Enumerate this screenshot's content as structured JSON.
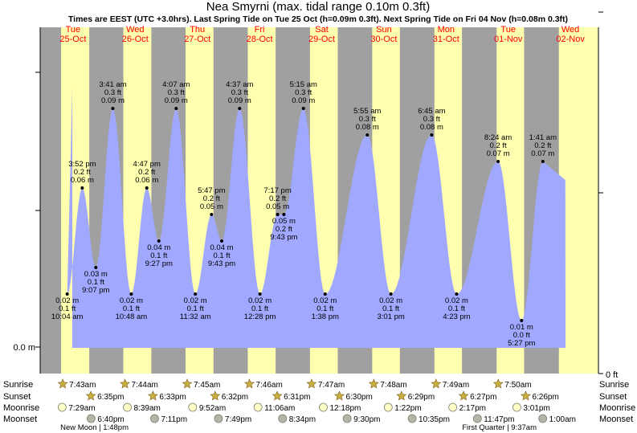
{
  "chart_data": {
    "type": "area",
    "title": "Nea Smyrni (max. tidal range 0.10m 0.3ft)",
    "subtitle": "Times are EEST (UTC +3.0hrs). Last Spring Tide on Tue 25 Oct (h=0.09m 0.3ft). Next Spring Tide on Fri 04 Nov (h=0.08m 0.3ft)",
    "y_left_label": "0.0 m",
    "y_right_label": "0 ft",
    "ylim_m": [
      0.0,
      0.1
    ],
    "days": [
      {
        "dow": "Tue",
        "date": "25-Oct"
      },
      {
        "dow": "Wed",
        "date": "26-Oct"
      },
      {
        "dow": "Thu",
        "date": "27-Oct"
      },
      {
        "dow": "Fri",
        "date": "28-Oct"
      },
      {
        "dow": "Sat",
        "date": "29-Oct"
      },
      {
        "dow": "Sun",
        "date": "30-Oct"
      },
      {
        "dow": "Mon",
        "date": "31-Oct"
      },
      {
        "dow": "Tue",
        "date": "01-Nov"
      },
      {
        "dow": "Wed",
        "date": "02-Nov"
      }
    ],
    "tides": [
      {
        "day": 0,
        "time": "10:04 am",
        "m": "0.02 m",
        "ft": "0.1 ft",
        "type": "low",
        "h": 0.02
      },
      {
        "day": 0,
        "time": "3:52 pm",
        "m": "0.06 m",
        "ft": "0.2 ft",
        "type": "high",
        "h": 0.06
      },
      {
        "day": 0,
        "time": "9:07 pm",
        "m": "0.03 m",
        "ft": "0.1 ft",
        "type": "low",
        "h": 0.03
      },
      {
        "day": 1,
        "time": "3:41 am",
        "m": "0.09 m",
        "ft": "0.3 ft",
        "type": "high",
        "h": 0.09
      },
      {
        "day": 1,
        "time": "10:48 am",
        "m": "0.02 m",
        "ft": "0.1 ft",
        "type": "low",
        "h": 0.02
      },
      {
        "day": 1,
        "time": "4:47 pm",
        "m": "0.06 m",
        "ft": "0.2 ft",
        "type": "high",
        "h": 0.06
      },
      {
        "day": 1,
        "time": "9:27 pm",
        "m": "0.04 m",
        "ft": "0.1 ft",
        "type": "low",
        "h": 0.04
      },
      {
        "day": 2,
        "time": "4:07 am",
        "m": "0.09 m",
        "ft": "0.3 ft",
        "type": "high",
        "h": 0.09
      },
      {
        "day": 2,
        "time": "11:32 am",
        "m": "0.02 m",
        "ft": "0.1 ft",
        "type": "low",
        "h": 0.02
      },
      {
        "day": 2,
        "time": "5:47 pm",
        "m": "0.05 m",
        "ft": "0.2 ft",
        "type": "high",
        "h": 0.05
      },
      {
        "day": 2,
        "time": "9:43 pm",
        "m": "0.04 m",
        "ft": "0.1 ft",
        "type": "low",
        "h": 0.04
      },
      {
        "day": 3,
        "time": "4:37 am",
        "m": "0.09 m",
        "ft": "0.3 ft",
        "type": "high",
        "h": 0.09
      },
      {
        "day": 3,
        "time": "12:28 pm",
        "m": "0.02 m",
        "ft": "0.1 ft",
        "type": "low",
        "h": 0.02
      },
      {
        "day": 3,
        "time": "7:17 pm",
        "m": "0.05 m",
        "ft": "0.2 ft",
        "type": "high",
        "h": 0.05
      },
      {
        "day": 3,
        "time": "9:43 pm",
        "m": "0.05 m",
        "ft": "0.2 ft",
        "type": "low",
        "h": 0.05
      },
      {
        "day": 4,
        "time": "5:15 am",
        "m": "0.09 m",
        "ft": "0.3 ft",
        "type": "high",
        "h": 0.09
      },
      {
        "day": 4,
        "time": "1:38 pm",
        "m": "0.02 m",
        "ft": "0.1 ft",
        "type": "low",
        "h": 0.02
      },
      {
        "day": 5,
        "time": "5:55 am",
        "m": "0.08 m",
        "ft": "0.3 ft",
        "type": "high",
        "h": 0.08
      },
      {
        "day": 5,
        "time": "3:01 pm",
        "m": "0.02 m",
        "ft": "0.1 ft",
        "type": "low",
        "h": 0.02
      },
      {
        "day": 6,
        "time": "6:45 am",
        "m": "0.08 m",
        "ft": "0.3 ft",
        "type": "high",
        "h": 0.08
      },
      {
        "day": 6,
        "time": "4:23 pm",
        "m": "0.02 m",
        "ft": "0.1 ft",
        "type": "low",
        "h": 0.02
      },
      {
        "day": 7,
        "time": "8:24 am",
        "m": "0.07 m",
        "ft": "0.2 ft",
        "type": "high",
        "h": 0.07
      },
      {
        "day": 7,
        "time": "5:27 pm",
        "m": "0.01 m",
        "ft": "0.0 ft",
        "type": "low",
        "h": 0.01
      },
      {
        "day": 8,
        "time": "1:41 am",
        "m": "0.07 m",
        "ft": "0.2 ft",
        "type": "high",
        "h": 0.07
      }
    ],
    "astro_labels": {
      "left": [
        "Sunrise",
        "Sunset",
        "Moonrise",
        "Moonset"
      ],
      "right": [
        "Sunrise",
        "Sunset",
        "Moonrise",
        "Moonset"
      ]
    },
    "sunrise": [
      "7:43am",
      "7:44am",
      "7:45am",
      "7:46am",
      "7:47am",
      "7:48am",
      "7:49am",
      "7:50am"
    ],
    "sunset": [
      "6:35pm",
      "6:33pm",
      "6:32pm",
      "6:31pm",
      "6:30pm",
      "6:29pm",
      "6:27pm",
      "6:26pm"
    ],
    "moonrise": [
      "7:29am",
      "8:39am",
      "9:52am",
      "11:06am",
      "12:18pm",
      "1:22pm",
      "2:17pm",
      "3:01pm"
    ],
    "moonset": [
      "6:40pm",
      "7:11pm",
      "7:49pm",
      "8:34pm",
      "9:30pm",
      "10:35pm",
      "11:47pm",
      "1:00am"
    ],
    "moon_phases": [
      {
        "label": "New Moon",
        "time": "1:48pm"
      },
      {
        "label": "First Quarter",
        "time": "9:37am"
      }
    ],
    "colors": {
      "night": "#a0a0a0",
      "day": "#ffffb0",
      "water": "#a0a8ff",
      "day_label_red": "#ff0000",
      "sun_star": "#c8b040",
      "moonrise_fill": "#ffffc8",
      "moonset_fill": "#b4b4a8"
    }
  }
}
